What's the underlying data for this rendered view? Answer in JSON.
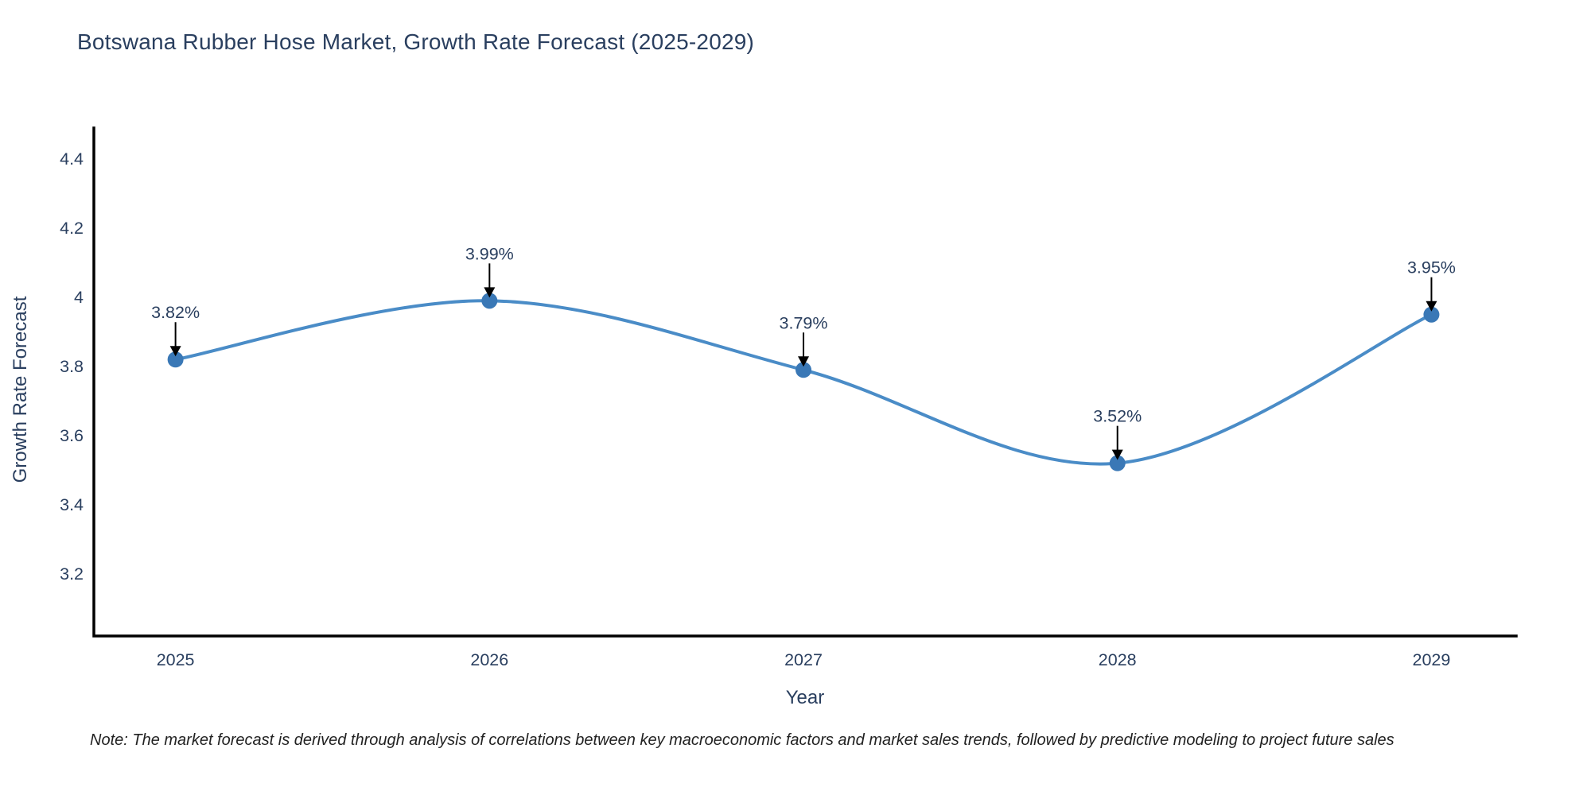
{
  "title": "Botswana Rubber Hose Market, Growth Rate Forecast (2025-2029)",
  "note": "Note: The market forecast is derived through analysis of correlations between key macroeconomic factors and market sales trends, followed by predictive modeling to project future sales",
  "chart_data": {
    "type": "line",
    "title": "Botswana Rubber Hose Market, Growth Rate Forecast (2025-2029)",
    "x": [
      2025,
      2026,
      2027,
      2028,
      2029
    ],
    "xtick_labels": [
      "2025",
      "2026",
      "2027",
      "2028",
      "2029"
    ],
    "series": [
      {
        "name": "Growth Rate Forecast",
        "values": [
          3.82,
          3.99,
          3.79,
          3.52,
          3.95
        ]
      }
    ],
    "point_labels": [
      "3.82%",
      "3.99%",
      "3.79%",
      "3.52%",
      "3.95%"
    ],
    "xlabel": "Year",
    "ylabel": "Growth Rate Forecast",
    "yticks": [
      3.2,
      3.4,
      3.6,
      3.8,
      4,
      4.2,
      4.4
    ],
    "ytick_labels": [
      "3.2",
      "3.4",
      "3.6",
      "3.8",
      "4",
      "4.2",
      "4.4"
    ],
    "ylim": [
      3.02,
      4.49
    ],
    "xlim": [
      2024.74,
      2029.27
    ],
    "grid": false,
    "legend": "none",
    "line_shape": "spline",
    "colors": {
      "line": "#4a8cc7",
      "marker": "#3a78b6",
      "axis": "#000000",
      "text": "#2a3f5f",
      "annotation_text": "#2a3f5f",
      "annotation_arrow": "#000000",
      "note_text": "#222222",
      "background": "#ffffff"
    }
  }
}
